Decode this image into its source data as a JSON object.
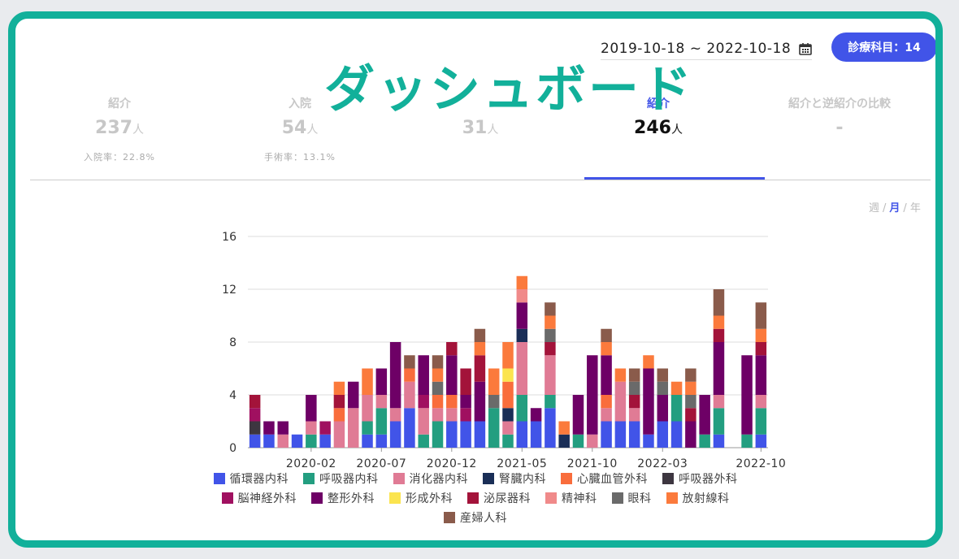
{
  "overlay_title": "ダッシュボード",
  "date_range": "2019-10-18 ~ 2022-10-18",
  "department_button": "診療科目：14",
  "stats": [
    {
      "label": "紹介",
      "value": "237",
      "unit": "人",
      "sub": "入院率：22.8%"
    },
    {
      "label": "入院",
      "value": "54",
      "unit": "人",
      "sub": "手術率：13.1%"
    },
    {
      "label": "",
      "value": "31",
      "unit": "人",
      "sub": ""
    },
    {
      "label": "紹介",
      "value": "246",
      "unit": "人",
      "sub": "",
      "active": true
    },
    {
      "label": "紹介と逆紹介の比較",
      "value": "-",
      "unit": "",
      "sub": ""
    }
  ],
  "period": {
    "week": "週",
    "month": "月",
    "year": "年",
    "sep": "/",
    "selected": "month"
  },
  "icons": {
    "calendar": "calendar-icon"
  },
  "colors": {
    "accent": "#4154e8",
    "frame": "#12b09a"
  },
  "chart_data": {
    "type": "bar",
    "stacked": true,
    "ylim": [
      0,
      16
    ],
    "yticks": [
      0,
      4,
      8,
      12,
      16
    ],
    "grid": true,
    "legend_position": "bottom",
    "categories": [
      "2019-10",
      "2019-11",
      "2019-12",
      "2020-01",
      "2020-02",
      "2020-03",
      "2020-04",
      "2020-05",
      "2020-06",
      "2020-07",
      "2020-08",
      "2020-09",
      "2020-10",
      "2020-11",
      "2020-12",
      "2021-01",
      "2021-02",
      "2021-03",
      "2021-04",
      "2021-05",
      "2021-06",
      "2021-07",
      "2021-08",
      "2021-09",
      "2021-10",
      "2021-11",
      "2021-12",
      "2022-01",
      "2022-02",
      "2022-03",
      "2022-04",
      "2022-05",
      "2022-06",
      "2022-07",
      "2022-08",
      "2022-09",
      "2022-10"
    ],
    "xtick_labels": [
      "2020-02",
      "2020-07",
      "2020-12",
      "2021-05",
      "2021-10",
      "2022-03",
      "2022-10"
    ],
    "series": [
      {
        "name": "循環器内科",
        "color": "#4154e8",
        "values": [
          1,
          1,
          0,
          1,
          0,
          1,
          0,
          0,
          1,
          1,
          2,
          3,
          0,
          0,
          2,
          2,
          2,
          0,
          0,
          2,
          2,
          3,
          0,
          0,
          0,
          2,
          2,
          2,
          1,
          2,
          2,
          0,
          0,
          1,
          0,
          0,
          1
        ]
      },
      {
        "name": "呼吸器内科",
        "color": "#239e80",
        "values": [
          0,
          0,
          0,
          0,
          1,
          0,
          0,
          0,
          1,
          2,
          0,
          0,
          1,
          2,
          0,
          0,
          0,
          3,
          1,
          2,
          0,
          1,
          0,
          1,
          0,
          0,
          0,
          0,
          0,
          0,
          2,
          0,
          1,
          2,
          0,
          1,
          2
        ]
      },
      {
        "name": "消化器内科",
        "color": "#e07b95",
        "values": [
          0,
          0,
          1,
          0,
          1,
          0,
          2,
          3,
          2,
          1,
          1,
          2,
          2,
          1,
          1,
          0,
          0,
          0,
          1,
          4,
          0,
          3,
          0,
          0,
          1,
          1,
          3,
          1,
          0,
          0,
          0,
          0,
          0,
          1,
          0,
          0,
          1
        ]
      },
      {
        "name": "腎臓内科",
        "color": "#1a2e57",
        "values": [
          0,
          0,
          0,
          0,
          0,
          0,
          0,
          0,
          0,
          0,
          0,
          0,
          0,
          0,
          0,
          0,
          0,
          0,
          1,
          1,
          0,
          0,
          1,
          0,
          0,
          0,
          0,
          0,
          0,
          0,
          0,
          0,
          0,
          0,
          0,
          0,
          0
        ]
      },
      {
        "name": "心臓血管外科",
        "color": "#f96d3c",
        "values": [
          0,
          0,
          0,
          0,
          0,
          0,
          1,
          0,
          0,
          0,
          0,
          1,
          0,
          1,
          1,
          0,
          0,
          0,
          2,
          0,
          0,
          0,
          0,
          0,
          0,
          1,
          0,
          0,
          0,
          0,
          0,
          0,
          0,
          0,
          0,
          0,
          0
        ]
      },
      {
        "name": "呼吸器外科",
        "color": "#3d3640",
        "values": [
          1,
          0,
          0,
          0,
          0,
          0,
          0,
          0,
          0,
          0,
          0,
          0,
          0,
          0,
          0,
          0,
          0,
          0,
          0,
          0,
          0,
          0,
          0,
          0,
          0,
          0,
          0,
          0,
          0,
          0,
          0,
          0,
          0,
          0,
          0,
          0,
          0
        ]
      },
      {
        "name": "脳神経外科",
        "color": "#a01060",
        "values": [
          1,
          0,
          0,
          0,
          0,
          1,
          0,
          0,
          0,
          0,
          0,
          0,
          1,
          0,
          0,
          1,
          0,
          0,
          0,
          0,
          0,
          0,
          0,
          0,
          0,
          0,
          0,
          0,
          0,
          0,
          0,
          0,
          0,
          0,
          0,
          0,
          0
        ]
      },
      {
        "name": "整形外科",
        "color": "#6e0066",
        "values": [
          0,
          1,
          1,
          0,
          2,
          0,
          0,
          2,
          0,
          2,
          5,
          0,
          3,
          0,
          3,
          1,
          3,
          0,
          0,
          2,
          1,
          0,
          0,
          3,
          6,
          3,
          0,
          0,
          5,
          2,
          0,
          2,
          3,
          4,
          0,
          6,
          3
        ]
      },
      {
        "name": "形成外科",
        "color": "#fbe44f",
        "values": [
          0,
          0,
          0,
          0,
          0,
          0,
          0,
          0,
          0,
          0,
          0,
          0,
          0,
          0,
          0,
          0,
          0,
          0,
          1,
          0,
          0,
          0,
          0,
          0,
          0,
          0,
          0,
          0,
          0,
          0,
          0,
          0,
          0,
          0,
          0,
          0,
          0
        ]
      },
      {
        "name": "泌尿器科",
        "color": "#a3133a",
        "values": [
          1,
          0,
          0,
          0,
          0,
          0,
          1,
          0,
          0,
          0,
          0,
          0,
          0,
          0,
          1,
          2,
          2,
          0,
          0,
          0,
          0,
          1,
          0,
          0,
          0,
          0,
          0,
          1,
          0,
          0,
          0,
          1,
          0,
          1,
          0,
          0,
          1
        ]
      },
      {
        "name": "精神科",
        "color": "#f08a8a",
        "values": [
          0,
          0,
          0,
          0,
          0,
          0,
          0,
          0,
          0,
          0,
          0,
          0,
          0,
          0,
          0,
          0,
          0,
          0,
          0,
          1,
          0,
          0,
          0,
          0,
          0,
          0,
          0,
          0,
          0,
          0,
          0,
          0,
          0,
          0,
          0,
          0,
          0
        ]
      },
      {
        "name": "眼科",
        "color": "#6a6a6a",
        "values": [
          0,
          0,
          0,
          0,
          0,
          0,
          0,
          0,
          0,
          0,
          0,
          0,
          0,
          1,
          0,
          0,
          0,
          1,
          0,
          0,
          0,
          1,
          0,
          0,
          0,
          0,
          0,
          1,
          0,
          1,
          0,
          1,
          0,
          0,
          0,
          0,
          0
        ]
      },
      {
        "name": "放射線科",
        "color": "#fb7a3c",
        "values": [
          0,
          0,
          0,
          0,
          0,
          0,
          1,
          0,
          2,
          0,
          0,
          0,
          0,
          1,
          0,
          0,
          1,
          2,
          2,
          1,
          0,
          1,
          1,
          0,
          0,
          1,
          1,
          0,
          1,
          0,
          1,
          1,
          0,
          1,
          0,
          0,
          1
        ]
      },
      {
        "name": "産婦人科",
        "color": "#8a5b4b",
        "values": [
          0,
          0,
          0,
          0,
          0,
          0,
          0,
          0,
          0,
          0,
          0,
          1,
          0,
          1,
          0,
          0,
          1,
          0,
          0,
          0,
          0,
          1,
          0,
          0,
          0,
          1,
          0,
          1,
          0,
          1,
          0,
          1,
          0,
          2,
          0,
          0,
          2
        ]
      }
    ],
    "legend_rows": [
      [
        0,
        1,
        2,
        3,
        4,
        5
      ],
      [
        6,
        7,
        8,
        9,
        10,
        11,
        12
      ],
      [
        13
      ]
    ]
  }
}
